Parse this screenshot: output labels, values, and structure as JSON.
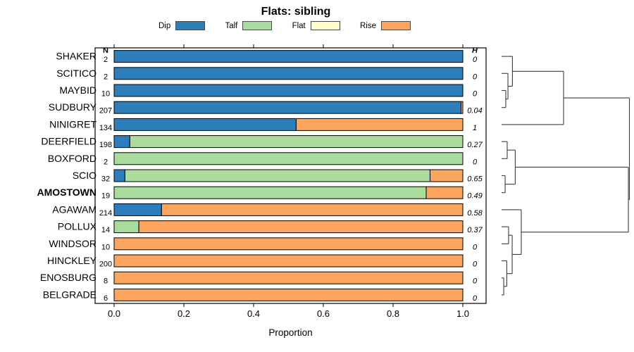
{
  "title": "Flats: sibling",
  "legend": {
    "items": [
      {
        "label": "Dip",
        "key": "dip",
        "color": "#2E7EBC"
      },
      {
        "label": "Talf",
        "key": "talf",
        "color": "#ABDC9E"
      },
      {
        "label": "Flat",
        "key": "flat",
        "color": "#FFFFCC"
      },
      {
        "label": "Rise",
        "key": "rise",
        "color": "#FBA55F"
      }
    ]
  },
  "columns": {
    "n_header": "N",
    "h_header": "H"
  },
  "x_axis": {
    "label": "Proportion",
    "ticks": [
      "0.0",
      "0.2",
      "0.4",
      "0.6",
      "0.8",
      "1.0"
    ]
  },
  "chart_data": {
    "type": "bar",
    "variant": "horizontal-stacked-proportion",
    "title": "Flats: sibling",
    "xlabel": "Proportion",
    "xlim": [
      0,
      1
    ],
    "grid": false,
    "legend_position": "top",
    "legend_entries": [
      "Dip",
      "Talf",
      "Flat",
      "Rise"
    ],
    "categories": [
      "SHAKER",
      "SCITICO",
      "MAYBID",
      "SUDBURY",
      "NINIGRET",
      "DEERFIELD",
      "BOXFORD",
      "SCIO",
      "AMOSTOWN",
      "AGAWAM",
      "POLLUX",
      "WINDSOR",
      "HINCKLEY",
      "ENOSBURG",
      "BELGRADE"
    ],
    "rows": [
      {
        "name": "SHAKER",
        "n": "2",
        "h": "0",
        "bold": false,
        "segments": {
          "dip": 1,
          "talf": 0,
          "flat": 0,
          "rise": 0
        }
      },
      {
        "name": "SCITICO",
        "n": "2",
        "h": "0",
        "bold": false,
        "segments": {
          "dip": 1,
          "talf": 0,
          "flat": 0,
          "rise": 0
        }
      },
      {
        "name": "MAYBID",
        "n": "10",
        "h": "0",
        "bold": false,
        "segments": {
          "dip": 1,
          "talf": 0,
          "flat": 0,
          "rise": 0
        }
      },
      {
        "name": "SUDBURY",
        "n": "207",
        "h": "0.04",
        "bold": false,
        "segments": {
          "dip": 0.995,
          "talf": 0,
          "flat": 0,
          "rise": 0.005
        }
      },
      {
        "name": "NINIGRET",
        "n": "134",
        "h": "1",
        "bold": false,
        "segments": {
          "dip": 0.522,
          "talf": 0,
          "flat": 0,
          "rise": 0.478
        }
      },
      {
        "name": "DEERFIELD",
        "n": "198",
        "h": "0.27",
        "bold": false,
        "segments": {
          "dip": 0.045,
          "talf": 0.955,
          "flat": 0,
          "rise": 0
        }
      },
      {
        "name": "BOXFORD",
        "n": "2",
        "h": "0",
        "bold": false,
        "segments": {
          "dip": 0,
          "talf": 1,
          "flat": 0,
          "rise": 0
        }
      },
      {
        "name": "SCIO",
        "n": "32",
        "h": "0.65",
        "bold": false,
        "segments": {
          "dip": 0.031,
          "talf": 0.875,
          "flat": 0,
          "rise": 0.094
        }
      },
      {
        "name": "AMOSTOWN",
        "n": "19",
        "h": "0.49",
        "bold": true,
        "segments": {
          "dip": 0,
          "talf": 0.895,
          "flat": 0,
          "rise": 0.105
        }
      },
      {
        "name": "AGAWAM",
        "n": "214",
        "h": "0.58",
        "bold": false,
        "segments": {
          "dip": 0.136,
          "talf": 0,
          "flat": 0,
          "rise": 0.864
        }
      },
      {
        "name": "POLLUX",
        "n": "14",
        "h": "0.37",
        "bold": false,
        "segments": {
          "dip": 0,
          "talf": 0.071,
          "flat": 0,
          "rise": 0.929
        }
      },
      {
        "name": "WINDSOR",
        "n": "10",
        "h": "0",
        "bold": false,
        "segments": {
          "dip": 0,
          "talf": 0,
          "flat": 0,
          "rise": 1
        }
      },
      {
        "name": "HINCKLEY",
        "n": "200",
        "h": "0",
        "bold": false,
        "segments": {
          "dip": 0,
          "talf": 0,
          "flat": 0,
          "rise": 1
        }
      },
      {
        "name": "ENOSBURG",
        "n": "8",
        "h": "0",
        "bold": false,
        "segments": {
          "dip": 0,
          "talf": 0,
          "flat": 0,
          "rise": 1
        }
      },
      {
        "name": "BELGRADE",
        "n": "6",
        "h": "0",
        "bold": false,
        "segments": {
          "dip": 0,
          "talf": 0,
          "flat": 0,
          "rise": 1
        }
      }
    ]
  },
  "dendrogram": {
    "h": 1.0,
    "children": [
      {
        "h": 0.485,
        "children": [
          {
            "h": 0.085,
            "children": [
              {
                "leaf": "SHAKER"
              },
              {
                "h": 0.05,
                "children": [
                  {
                    "leaf": "SCITICO"
                  },
                  {
                    "h": 0.033,
                    "children": [
                      {
                        "leaf": "MAYBID"
                      },
                      {
                        "leaf": "SUDBURY"
                      }
                    ]
                  }
                ]
              }
            ]
          },
          {
            "leaf": "NINIGRET"
          }
        ]
      },
      {
        "h": 0.992,
        "children": [
          {
            "h": 0.107,
            "children": [
              {
                "h": 0.044,
                "children": [
                  {
                    "leaf": "DEERFIELD"
                  },
                  {
                    "leaf": "BOXFORD"
                  }
                ]
              },
              {
                "h": 0.028,
                "children": [
                  {
                    "leaf": "SCIO"
                  },
                  {
                    "leaf": "AMOSTOWN"
                  }
                ]
              }
            ]
          },
          {
            "h": 0.154,
            "children": [
              {
                "leaf": "AGAWAM"
              },
              {
                "h": 0.083,
                "children": [
                  {
                    "h": 0.055,
                    "children": [
                      {
                        "leaf": "POLLUX"
                      },
                      {
                        "leaf": "WINDSOR"
                      }
                    ]
                  },
                  {
                    "h": 0.041,
                    "children": [
                      {
                        "leaf": "HINCKLEY"
                      },
                      {
                        "h": 0.017,
                        "children": [
                          {
                            "leaf": "ENOSBURG"
                          },
                          {
                            "leaf": "BELGRADE"
                          }
                        ]
                      }
                    ]
                  }
                ]
              }
            ]
          }
        ]
      }
    ]
  }
}
